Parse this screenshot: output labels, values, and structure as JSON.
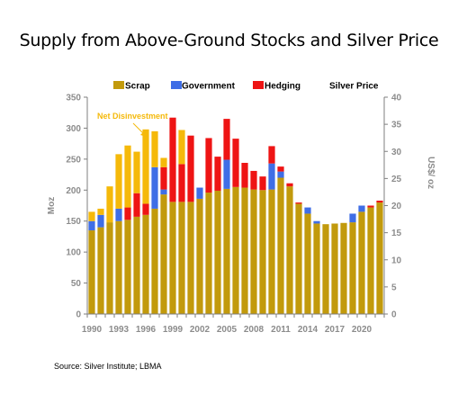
{
  "chart_data": {
    "type": "bar",
    "title": "Supply from Above-Ground Stocks and Silver Price",
    "ylabel": "Moz",
    "y2label": "US$/ oz",
    "ylim": [
      0,
      350
    ],
    "y2lim": [
      0,
      40
    ],
    "yticks": [
      "0",
      "50",
      "100",
      "150",
      "200",
      "250",
      "300",
      "350"
    ],
    "y2ticks": [
      "0",
      "5",
      "10",
      "15",
      "20",
      "25",
      "30",
      "35",
      "40"
    ],
    "xticks": [
      "1990",
      "1993",
      "1996",
      "1999",
      "2002",
      "2005",
      "2008",
      "2011",
      "2014",
      "2017",
      "2020"
    ],
    "years": [
      1990,
      1991,
      1992,
      1993,
      1994,
      1995,
      1996,
      1997,
      1998,
      1999,
      2000,
      2001,
      2002,
      2003,
      2004,
      2005,
      2006,
      2007,
      2008,
      2009,
      2010,
      2011,
      2012,
      2013,
      2014,
      2015,
      2016,
      2017,
      2018,
      2019,
      2020,
      2021,
      2022
    ],
    "stacked": true,
    "series": [
      {
        "name": "Scrap",
        "color": "#c29a0c",
        "values": [
          135,
          140,
          148,
          150,
          152,
          157,
          160,
          170,
          193,
          181,
          181,
          181,
          186,
          196,
          199,
          202,
          205,
          204,
          201,
          200,
          201,
          220,
          206,
          178,
          162,
          146,
          145,
          146,
          147,
          148,
          165,
          172,
          180
        ]
      },
      {
        "name": "Government",
        "color": "#3f6ee6",
        "values": [
          15,
          20,
          0,
          20,
          0,
          0,
          0,
          67,
          8,
          0,
          0,
          0,
          18,
          0,
          0,
          47,
          0,
          0,
          0,
          0,
          42,
          10,
          0,
          0,
          10,
          4,
          0,
          0,
          0,
          14,
          10,
          0,
          0
        ]
      },
      {
        "name": "Hedging",
        "color": "#ee1414",
        "values": [
          0,
          0,
          0,
          0,
          20,
          38,
          18,
          0,
          36,
          136,
          61,
          107,
          0,
          88,
          55,
          66,
          78,
          40,
          30,
          22,
          28,
          8,
          5,
          2,
          0,
          0,
          0,
          0,
          0,
          0,
          0,
          3,
          3
        ]
      },
      {
        "name": "Net Disinvestment",
        "color": "#f5b90a",
        "values": [
          15,
          10,
          58,
          88,
          100,
          67,
          120,
          58,
          15,
          0,
          55,
          0,
          0,
          0,
          0,
          0,
          0,
          0,
          0,
          0,
          0,
          0,
          0,
          0,
          0,
          0,
          0,
          0,
          0,
          0,
          0,
          0,
          0
        ]
      }
    ],
    "legend": {
      "position": "top",
      "entries": [
        {
          "label": "Scrap",
          "color": "#c29a0c"
        },
        {
          "label": "Government",
          "color": "#3f6ee6"
        },
        {
          "label": "Hedging",
          "color": "#ee1414"
        },
        {
          "label": "Silver Price"
        }
      ]
    },
    "annotations": [
      {
        "text": "Net Disinvestment",
        "color": "#f5b90a"
      }
    ],
    "grid": false
  },
  "source": "Source: Silver Institute; LBMA"
}
